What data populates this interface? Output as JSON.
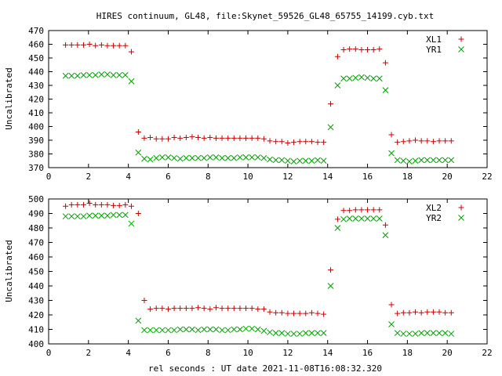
{
  "title": "HIRES continuum, GL48, file:Skynet_59526_GL48_65755_14199.cyb.txt",
  "xlabel": "rel seconds : UT date 2021-11-08T16:08:32.320",
  "chart_data": [
    {
      "type": "scatter",
      "ylabel": "Uncalibrated",
      "xlim": [
        0,
        22
      ],
      "ylim": [
        370,
        470
      ],
      "xticks": [
        "0",
        "2",
        "4",
        "6",
        "8",
        "10",
        "12",
        "14",
        "16",
        "18",
        "20",
        "22"
      ],
      "yticks": [
        "370",
        "380",
        "390",
        "400",
        "410",
        "420",
        "430",
        "440",
        "450",
        "460",
        "470"
      ],
      "legend": "top-right",
      "series": [
        {
          "name": "XL1",
          "marker": "+",
          "color": "#cc0000",
          "x": [
            0.85,
            1.15,
            1.45,
            1.75,
            2.05,
            2.35,
            2.65,
            2.95,
            3.25,
            3.55,
            3.85,
            4.15,
            4.5,
            4.8,
            5.1,
            5.4,
            5.7,
            6.0,
            6.3,
            6.6,
            6.9,
            7.2,
            7.5,
            7.8,
            8.1,
            8.4,
            8.7,
            9.0,
            9.3,
            9.6,
            9.9,
            10.2,
            10.5,
            10.8,
            11.1,
            11.4,
            11.7,
            12.0,
            12.3,
            12.6,
            12.9,
            13.2,
            13.5,
            13.8,
            14.15,
            14.5,
            14.8,
            15.1,
            15.4,
            15.7,
            16.0,
            16.3,
            16.6,
            16.9,
            17.2,
            17.5,
            17.8,
            18.1,
            18.4,
            18.7,
            19.0,
            19.3,
            19.6,
            19.9,
            20.2
          ],
          "y": [
            459.5,
            459.5,
            459.5,
            459.5,
            460,
            459,
            459.5,
            459,
            459,
            459,
            459,
            454.5,
            396,
            391.5,
            392,
            391,
            391,
            391,
            392,
            391.5,
            392,
            392.5,
            392,
            391.5,
            392,
            391.5,
            391.5,
            391.5,
            391.5,
            391.5,
            391.5,
            391.5,
            391.5,
            391,
            389.5,
            389,
            389,
            388,
            388.5,
            389,
            389,
            389,
            388.5,
            388.5,
            416.5,
            451,
            456,
            456.5,
            456.5,
            456,
            456,
            456,
            456.5,
            446.5,
            394,
            388.5,
            389,
            389.5,
            390,
            389.5,
            389.5,
            389,
            389.5,
            389.5,
            389.5
          ]
        },
        {
          "name": "YR1",
          "marker": "x",
          "color": "#00a000",
          "x": [
            0.85,
            1.15,
            1.45,
            1.75,
            2.05,
            2.35,
            2.65,
            2.95,
            3.25,
            3.55,
            3.85,
            4.15,
            4.5,
            4.8,
            5.1,
            5.4,
            5.7,
            6.0,
            6.3,
            6.6,
            6.9,
            7.2,
            7.5,
            7.8,
            8.1,
            8.4,
            8.7,
            9.0,
            9.3,
            9.6,
            9.9,
            10.2,
            10.5,
            10.8,
            11.1,
            11.4,
            11.7,
            12.0,
            12.3,
            12.6,
            12.9,
            13.2,
            13.5,
            13.8,
            14.15,
            14.5,
            14.8,
            15.1,
            15.4,
            15.7,
            16.0,
            16.3,
            16.6,
            16.9,
            17.2,
            17.5,
            17.8,
            18.1,
            18.4,
            18.7,
            19.0,
            19.3,
            19.6,
            19.9,
            20.2
          ],
          "y": [
            437,
            437,
            437,
            437.5,
            437.5,
            437.5,
            438,
            438,
            437.5,
            437.5,
            437.5,
            433,
            381,
            376.5,
            376,
            377,
            377.5,
            377.5,
            377,
            376.5,
            377,
            377,
            377,
            377,
            377.5,
            377.5,
            377,
            377,
            377,
            377.5,
            377.5,
            377.5,
            377.5,
            377,
            376,
            375.5,
            375.5,
            375,
            374.5,
            375,
            375,
            375,
            375.5,
            375,
            399.5,
            430,
            435,
            435,
            435.5,
            436,
            435.5,
            435,
            435,
            426.5,
            380.5,
            375.5,
            375,
            374.5,
            375,
            375.5,
            375.5,
            375.5,
            375.5,
            375.5,
            375.5
          ]
        }
      ]
    },
    {
      "type": "scatter",
      "ylabel": "Uncalibrated",
      "xlim": [
        0,
        22
      ],
      "ylim": [
        400,
        500
      ],
      "xticks": [
        "0",
        "2",
        "4",
        "6",
        "8",
        "10",
        "12",
        "14",
        "16",
        "18",
        "20",
        "22"
      ],
      "yticks": [
        "400",
        "410",
        "420",
        "430",
        "440",
        "450",
        "460",
        "470",
        "480",
        "490",
        "500"
      ],
      "legend": "top-right",
      "series": [
        {
          "name": "XL2",
          "marker": "+",
          "color": "#cc0000",
          "x": [
            0.85,
            1.15,
            1.45,
            1.75,
            2.05,
            2.35,
            2.65,
            2.95,
            3.25,
            3.55,
            3.85,
            4.15,
            4.5,
            4.8,
            5.1,
            5.4,
            5.7,
            6.0,
            6.3,
            6.6,
            6.9,
            7.2,
            7.5,
            7.8,
            8.1,
            8.4,
            8.7,
            9.0,
            9.3,
            9.6,
            9.9,
            10.2,
            10.5,
            10.8,
            11.1,
            11.4,
            11.7,
            12.0,
            12.3,
            12.6,
            12.9,
            13.2,
            13.5,
            13.8,
            14.15,
            14.5,
            14.8,
            15.1,
            15.4,
            15.7,
            16.0,
            16.3,
            16.6,
            16.9,
            17.2,
            17.5,
            17.8,
            18.1,
            18.4,
            18.7,
            19.0,
            19.3,
            19.6,
            19.9,
            20.2
          ],
          "y": [
            495,
            496,
            496,
            496,
            497,
            496,
            496,
            496,
            495.5,
            495.5,
            496,
            495,
            490,
            430,
            424,
            424.5,
            424.5,
            424,
            424.5,
            424.5,
            424.5,
            424.5,
            425,
            424.5,
            424,
            425,
            424.5,
            424.5,
            424.5,
            424.5,
            424.5,
            424.5,
            424,
            424,
            422,
            421.5,
            421.5,
            421,
            421,
            421,
            421,
            421.5,
            421,
            420.5,
            451,
            486,
            492,
            492,
            492.5,
            492.5,
            492.5,
            492.5,
            492.5,
            482,
            427,
            421,
            421.5,
            421.5,
            422,
            421.5,
            422,
            422,
            422,
            421.5,
            421.5
          ]
        },
        {
          "name": "YR2",
          "marker": "x",
          "color": "#00a000",
          "x": [
            0.85,
            1.15,
            1.45,
            1.75,
            2.05,
            2.35,
            2.65,
            2.95,
            3.25,
            3.55,
            3.85,
            4.15,
            4.5,
            4.8,
            5.1,
            5.4,
            5.7,
            6.0,
            6.3,
            6.6,
            6.9,
            7.2,
            7.5,
            7.8,
            8.1,
            8.4,
            8.7,
            9.0,
            9.3,
            9.6,
            9.9,
            10.2,
            10.5,
            10.8,
            11.1,
            11.4,
            11.7,
            12.0,
            12.3,
            12.6,
            12.9,
            13.2,
            13.5,
            13.8,
            14.15,
            14.5,
            14.8,
            15.1,
            15.4,
            15.7,
            16.0,
            16.3,
            16.6,
            16.9,
            17.2,
            17.5,
            17.8,
            18.1,
            18.4,
            18.7,
            19.0,
            19.3,
            19.6,
            19.9,
            20.2
          ],
          "y": [
            488,
            488,
            488,
            488,
            488.5,
            488.5,
            488.5,
            488.5,
            489,
            489,
            489,
            483,
            416,
            409.5,
            409.5,
            409.5,
            409.5,
            409.5,
            409.5,
            410,
            410,
            410,
            409.5,
            410,
            410,
            410,
            409.5,
            409.5,
            410,
            410,
            410.5,
            410.5,
            410,
            409,
            408,
            407.5,
            407.5,
            407,
            407,
            407,
            407.5,
            407.5,
            407.5,
            407.5,
            440,
            480,
            486,
            486.5,
            486.5,
            486.5,
            486.5,
            486.5,
            486.5,
            475,
            413.5,
            407.5,
            407,
            407,
            407,
            407.5,
            407.5,
            407.5,
            407.5,
            407.5,
            407
          ]
        }
      ]
    }
  ]
}
